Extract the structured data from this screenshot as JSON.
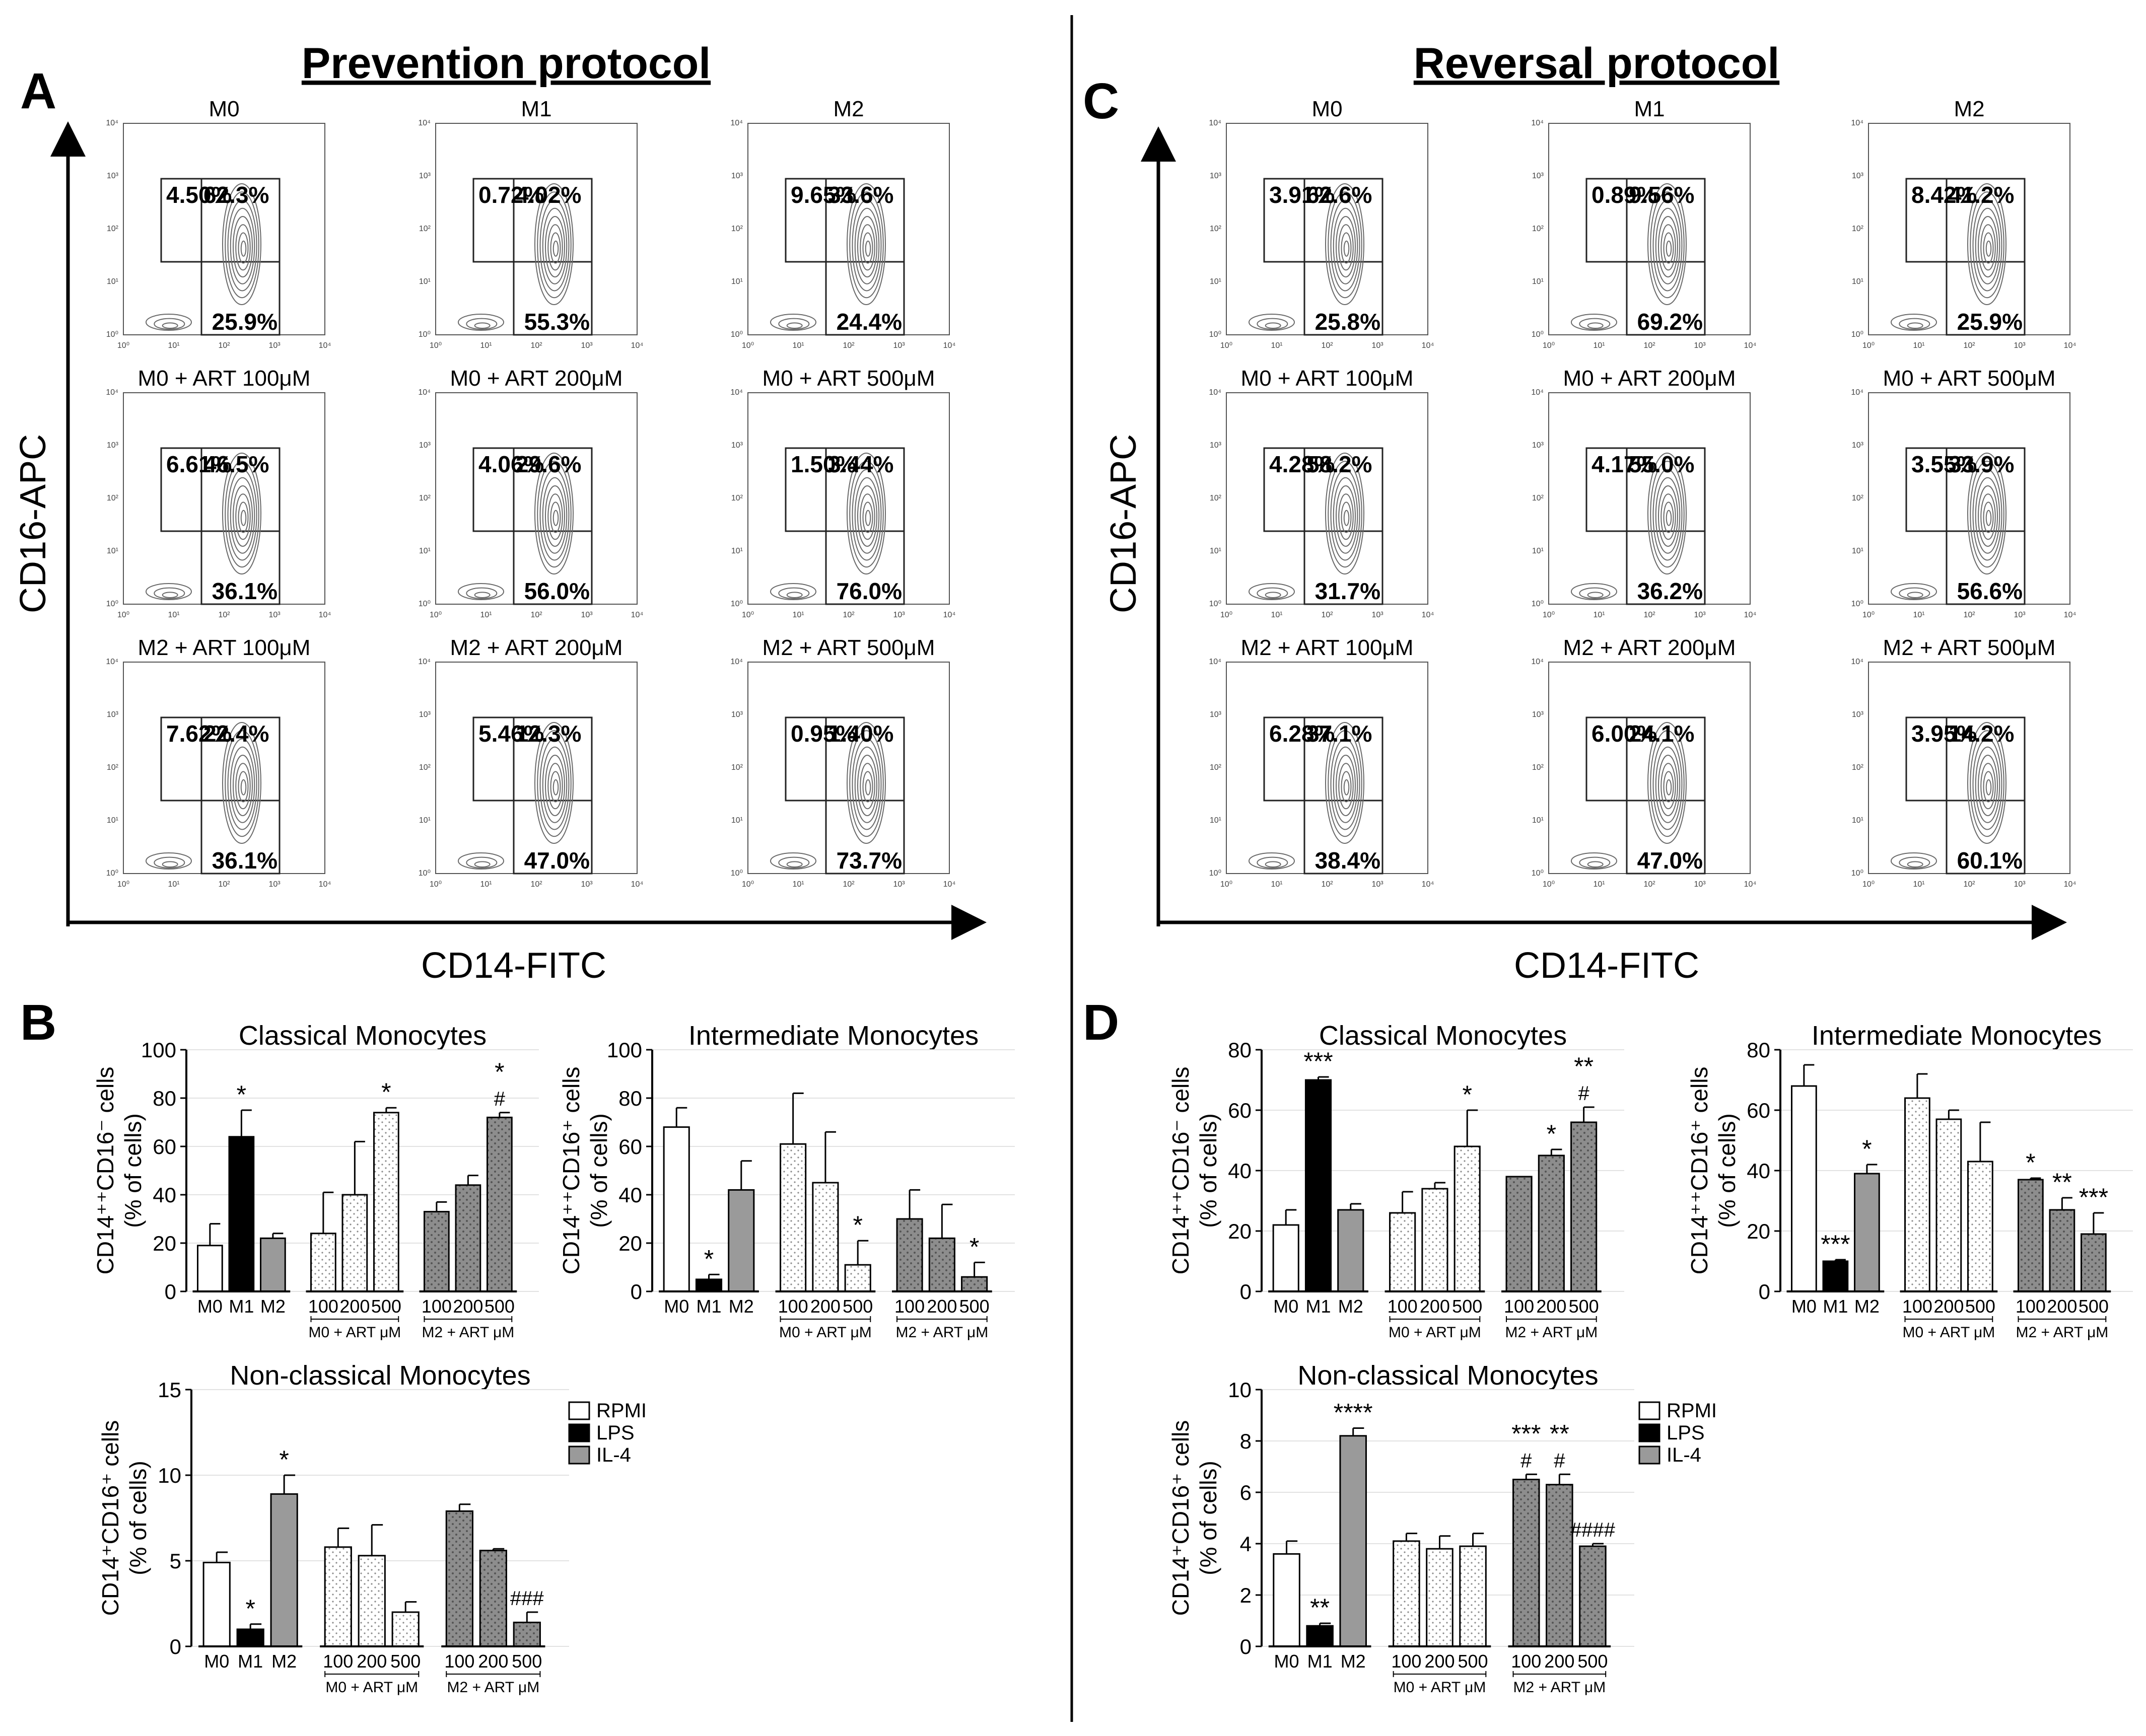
{
  "panel_labels": {
    "a": "A",
    "b": "B",
    "c": "C",
    "d": "D"
  },
  "flow_axes": {
    "y_label": "CD16-APC",
    "x_label": "CD14-FITC"
  },
  "flow_ticks": [
    "10⁰",
    "10¹",
    "10²",
    "10³",
    "10⁴"
  ],
  "flow_left": {
    "title": "Prevention protocol",
    "plots": [
      {
        "name": "M0",
        "ul": "4.50%",
        "ur": "62.3%",
        "lr": "25.9%"
      },
      {
        "name": "M1",
        "ul": "0.72%",
        "ur": "4.02%",
        "lr": "55.3%"
      },
      {
        "name": "M2",
        "ul": "9.65%",
        "ur": "33.6%",
        "lr": "24.4%"
      },
      {
        "name": "M0 + ART 100μM",
        "ul": "6.61%",
        "ur": "46.5%",
        "lr": "36.1%"
      },
      {
        "name": "M0 + ART 200μM",
        "ul": "4.06%",
        "ur": "29.6%",
        "lr": "56.0%"
      },
      {
        "name": "M0 + ART 500μM",
        "ul": "1.50%",
        "ur": "3.44%",
        "lr": "76.0%"
      },
      {
        "name": "M2 + ART 100μM",
        "ul": "7.62%",
        "ur": "22.4%",
        "lr": "36.1%"
      },
      {
        "name": "M2 + ART 200μM",
        "ul": "5.46%",
        "ur": "12.3%",
        "lr": "47.0%"
      },
      {
        "name": "M2 + ART 500μM",
        "ul": "0.95%",
        "ur": "1.40%",
        "lr": "73.7%"
      }
    ]
  },
  "flow_right": {
    "title": "Reversal protocol",
    "plots": [
      {
        "name": "M0",
        "ul": "3.91%",
        "ur": "62.6%",
        "lr": "25.8%"
      },
      {
        "name": "M1",
        "ul": "0.89%",
        "ur": "9.56%",
        "lr": "69.2%"
      },
      {
        "name": "M2",
        "ul": "8.42%",
        "ur": "41.2%",
        "lr": "25.9%"
      },
      {
        "name": "M0 + ART 100μM",
        "ul": "4.28%",
        "ur": "58.2%",
        "lr": "31.7%"
      },
      {
        "name": "M0 + ART 200μM",
        "ul": "4.17%",
        "ur": "55.0%",
        "lr": "36.2%"
      },
      {
        "name": "M0 + ART 500μM",
        "ul": "3.55%",
        "ur": "33.9%",
        "lr": "56.6%"
      },
      {
        "name": "M2 + ART 100μM",
        "ul": "6.28%",
        "ur": "37.1%",
        "lr": "38.4%"
      },
      {
        "name": "M2 + ART 200μM",
        "ul": "6.00%",
        "ur": "24.1%",
        "lr": "47.0%"
      },
      {
        "name": "M2 + ART 500μM",
        "ul": "3.95%",
        "ur": "14.2%",
        "lr": "60.1%"
      }
    ]
  },
  "group_labels": {
    "m0_art": "M0 + ART μM",
    "m2_art": "M2 + ART μM"
  },
  "legend": [
    {
      "label": "RPMI",
      "color": "#ffffff"
    },
    {
      "label": "LPS",
      "color": "#000000"
    },
    {
      "label": "IL-4",
      "color": "#9a9a9a"
    }
  ],
  "chart_data": [
    {
      "id": "B1",
      "type": "bar",
      "title": "Classical Monocytes",
      "ylabel": "CD14⁺⁺CD16⁻ cells (% of cells)",
      "ylim": [
        0,
        100
      ],
      "yticks": [
        0,
        20,
        40,
        60,
        80,
        100
      ],
      "categories": [
        "M0",
        "M1",
        "M2",
        "100",
        "200",
        "500",
        "100",
        "200",
        "500"
      ],
      "values": [
        19,
        64,
        22,
        24,
        40,
        74,
        33,
        44,
        72
      ],
      "errors": [
        9,
        11,
        2,
        17,
        22,
        2,
        4,
        4,
        2
      ],
      "annotations": [
        "",
        "*",
        "",
        "",
        "",
        "*",
        "",
        "",
        "*\n#"
      ]
    },
    {
      "id": "B2",
      "type": "bar",
      "title": "Intermediate Monocytes",
      "ylabel": "CD14⁺⁺CD16⁺ cells (% of cells)",
      "ylim": [
        0,
        100
      ],
      "yticks": [
        0,
        20,
        40,
        60,
        80,
        100
      ],
      "categories": [
        "M0",
        "M1",
        "M2",
        "100",
        "200",
        "500",
        "100",
        "200",
        "500"
      ],
      "values": [
        68,
        5,
        42,
        61,
        45,
        11,
        30,
        22,
        6
      ],
      "errors": [
        8,
        2,
        12,
        21,
        21,
        10,
        12,
        14,
        6
      ],
      "annotations": [
        "",
        "*",
        "",
        "",
        "",
        "*",
        "",
        "",
        "*"
      ]
    },
    {
      "id": "B3",
      "type": "bar",
      "title": "Non-classical Monocytes",
      "ylabel": "CD14⁺CD16⁺ cells (% of cells)",
      "ylim": [
        0,
        15
      ],
      "yticks": [
        0,
        5,
        10,
        15
      ],
      "categories": [
        "M0",
        "M1",
        "M2",
        "100",
        "200",
        "500",
        "100",
        "200",
        "500"
      ],
      "values": [
        4.9,
        1.0,
        8.9,
        5.8,
        5.3,
        2.0,
        7.9,
        5.6,
        1.4
      ],
      "errors": [
        0.6,
        0.3,
        1.1,
        1.1,
        1.8,
        0.6,
        0.4,
        0.1,
        0.6
      ],
      "annotations": [
        "",
        "*",
        "*",
        "",
        "",
        "",
        "",
        "",
        "###"
      ]
    },
    {
      "id": "D1",
      "type": "bar",
      "title": "Classical Monocytes",
      "ylabel": "CD14⁺⁺CD16⁻ cells (% of cells)",
      "ylim": [
        0,
        80
      ],
      "yticks": [
        0,
        20,
        40,
        60,
        80
      ],
      "categories": [
        "M0",
        "M1",
        "M2",
        "100",
        "200",
        "500",
        "100",
        "200",
        "500"
      ],
      "values": [
        22,
        70,
        27,
        26,
        34,
        48,
        38,
        45,
        56
      ],
      "errors": [
        5,
        1,
        2,
        7,
        2,
        12,
        0,
        2,
        5
      ],
      "annotations": [
        "",
        "***",
        "",
        "",
        "",
        "*",
        "",
        "*",
        "**\n#"
      ]
    },
    {
      "id": "D2",
      "type": "bar",
      "title": "Intermediate Monocytes",
      "ylabel": "CD14⁺⁺CD16⁺ cells (% of cells)",
      "ylim": [
        0,
        80
      ],
      "yticks": [
        0,
        20,
        40,
        60,
        80
      ],
      "categories": [
        "M0",
        "M1",
        "M2",
        "100",
        "200",
        "500",
        "100",
        "200",
        "500"
      ],
      "values": [
        68,
        10,
        39,
        64,
        57,
        43,
        37,
        27,
        19
      ],
      "errors": [
        7,
        0.5,
        3,
        8,
        3,
        13,
        0.5,
        4,
        7
      ],
      "annotations": [
        "",
        "***",
        "*",
        "",
        "",
        "",
        "*",
        "**",
        "***"
      ]
    },
    {
      "id": "D3",
      "type": "bar",
      "title": "Non-classical Monocytes",
      "ylabel": "CD14⁺CD16⁺ cells (% of cells)",
      "ylim": [
        0,
        10
      ],
      "yticks": [
        0,
        2,
        4,
        6,
        8,
        10
      ],
      "categories": [
        "M0",
        "M1",
        "M2",
        "100",
        "200",
        "500",
        "100",
        "200",
        "500"
      ],
      "values": [
        3.6,
        0.8,
        8.2,
        4.1,
        3.8,
        3.9,
        6.5,
        6.3,
        3.9
      ],
      "errors": [
        0.5,
        0.1,
        0.3,
        0.3,
        0.5,
        0.5,
        0.2,
        0.4,
        0.1
      ],
      "annotations": [
        "",
        "**",
        "****",
        "",
        "",
        "",
        "***\n#",
        "**\n#",
        "####"
      ]
    }
  ]
}
